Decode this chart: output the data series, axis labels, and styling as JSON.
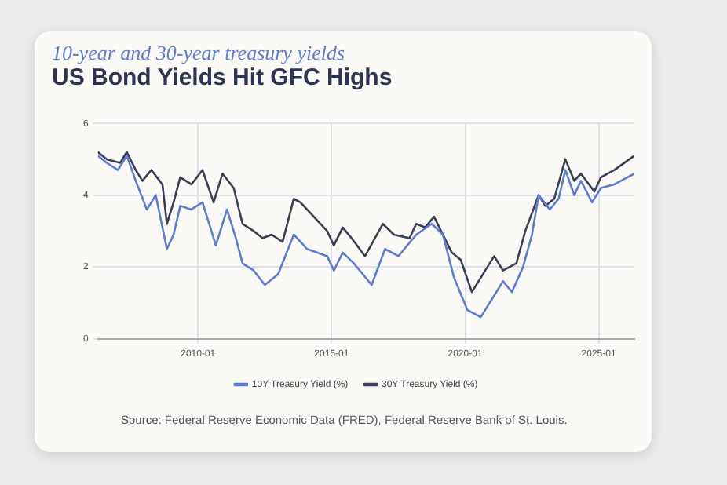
{
  "chart_data": {
    "type": "line",
    "title": "US Bond Yields Hit GFC Highs",
    "subtitle": "10-year and 30-year treasury yields",
    "xlim": [
      "2006-04",
      "2026-05"
    ],
    "xticks": [
      "2010-01",
      "2015-01",
      "2020-01",
      "2025-01"
    ],
    "ylim": [
      0,
      6
    ],
    "yticks": [
      0,
      2,
      4,
      6
    ],
    "grid": true,
    "legend": "bottom",
    "marker": "none",
    "line_style": "solid",
    "series": [
      {
        "name": "10Y Treasury Yield (%)",
        "color": "#5b7bd5",
        "x": [
          "2006-04",
          "2006-08",
          "2007-01",
          "2007-05",
          "2007-09",
          "2008-02",
          "2008-06",
          "2008-11",
          "2009-02",
          "2009-05",
          "2009-10",
          "2010-03",
          "2010-09",
          "2011-02",
          "2011-06",
          "2011-09",
          "2012-02",
          "2012-07",
          "2013-01",
          "2013-08",
          "2014-02",
          "2014-11",
          "2015-02",
          "2015-06",
          "2015-11",
          "2016-07",
          "2017-01",
          "2017-07",
          "2018-03",
          "2018-10",
          "2019-03",
          "2019-08",
          "2020-02",
          "2020-08",
          "2021-02",
          "2021-06",
          "2021-10",
          "2022-03",
          "2022-07",
          "2022-10",
          "2023-03",
          "2023-07",
          "2023-10",
          "2024-02",
          "2024-05",
          "2024-10",
          "2025-02",
          "2025-08",
          "2026-05"
        ],
        "values": [
          5.1,
          4.9,
          4.7,
          5.1,
          4.4,
          3.6,
          4.0,
          2.5,
          2.9,
          3.7,
          3.6,
          3.8,
          2.6,
          3.6,
          2.8,
          2.1,
          1.9,
          1.5,
          1.8,
          2.9,
          2.5,
          2.3,
          1.9,
          2.4,
          2.1,
          1.5,
          2.5,
          2.3,
          2.9,
          3.2,
          2.9,
          1.7,
          0.8,
          0.6,
          1.2,
          1.6,
          1.3,
          2.0,
          2.9,
          4.0,
          3.6,
          3.9,
          4.7,
          4.0,
          4.4,
          3.8,
          4.2,
          4.3,
          4.6
        ]
      },
      {
        "name": "30Y Treasury Yield (%)",
        "color": "#3a3f55",
        "x": [
          "2006-04",
          "2006-08",
          "2007-02",
          "2007-05",
          "2007-09",
          "2007-12",
          "2008-04",
          "2008-09",
          "2008-11",
          "2009-02",
          "2009-05",
          "2009-10",
          "2010-03",
          "2010-08",
          "2010-12",
          "2011-05",
          "2011-09",
          "2012-02",
          "2012-06",
          "2012-10",
          "2013-03",
          "2013-08",
          "2013-11",
          "2014-05",
          "2014-11",
          "2015-02",
          "2015-06",
          "2015-10",
          "2016-04",
          "2016-12",
          "2017-05",
          "2017-12",
          "2018-03",
          "2018-07",
          "2018-11",
          "2019-03",
          "2019-07",
          "2019-11",
          "2020-04",
          "2020-08",
          "2021-02",
          "2021-06",
          "2021-12",
          "2022-04",
          "2022-10",
          "2023-01",
          "2023-05",
          "2023-10",
          "2024-02",
          "2024-05",
          "2024-11",
          "2025-02",
          "2025-08",
          "2026-05"
        ],
        "values": [
          5.2,
          5.0,
          4.9,
          5.2,
          4.7,
          4.4,
          4.7,
          4.3,
          3.2,
          3.8,
          4.5,
          4.3,
          4.7,
          3.8,
          4.6,
          4.2,
          3.2,
          3.0,
          2.8,
          2.9,
          2.7,
          3.9,
          3.8,
          3.4,
          3.0,
          2.6,
          3.1,
          2.8,
          2.3,
          3.2,
          2.9,
          2.8,
          3.2,
          3.1,
          3.4,
          2.9,
          2.4,
          2.2,
          1.3,
          1.7,
          2.3,
          1.9,
          2.1,
          3.0,
          4.0,
          3.7,
          3.9,
          5.0,
          4.4,
          4.6,
          4.1,
          4.5,
          4.7,
          5.1
        ]
      }
    ],
    "annotations": [
      "Source: Federal Reserve Economic Data (FRED), Federal Reserve Bank of St. Louis."
    ]
  }
}
